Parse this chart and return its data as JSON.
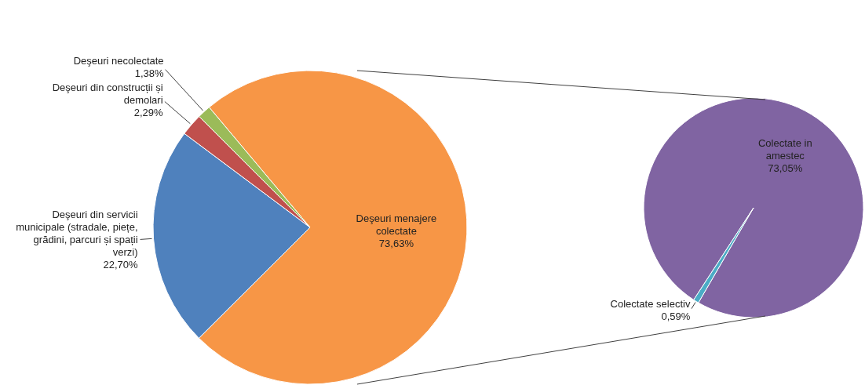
{
  "chart_data": [
    {
      "type": "pie",
      "categories": [
        "Deşeuri menajere colectate",
        "Deşeuri din servicii municipale (stradale, piețe, grădini, parcuri și spații verzi)",
        "Deşeuri din construcții și demolari",
        "Deşeuri necolectate"
      ],
      "values": [
        73.63,
        22.7,
        2.29,
        1.38
      ],
      "colors": [
        "#f79646",
        "#4f81bd",
        "#c0504d",
        "#9bbb59"
      ],
      "value_labels": [
        "73,63%",
        "22,70%",
        "2,29%",
        "1,38%"
      ]
    },
    {
      "type": "pie",
      "categories": [
        "Colectate in amestec",
        "Colectate selectiv"
      ],
      "values": [
        73.05,
        0.59
      ],
      "colors": [
        "#8064a2",
        "#4bacc6"
      ],
      "value_labels": [
        "73,05%",
        "0,59%"
      ]
    }
  ]
}
